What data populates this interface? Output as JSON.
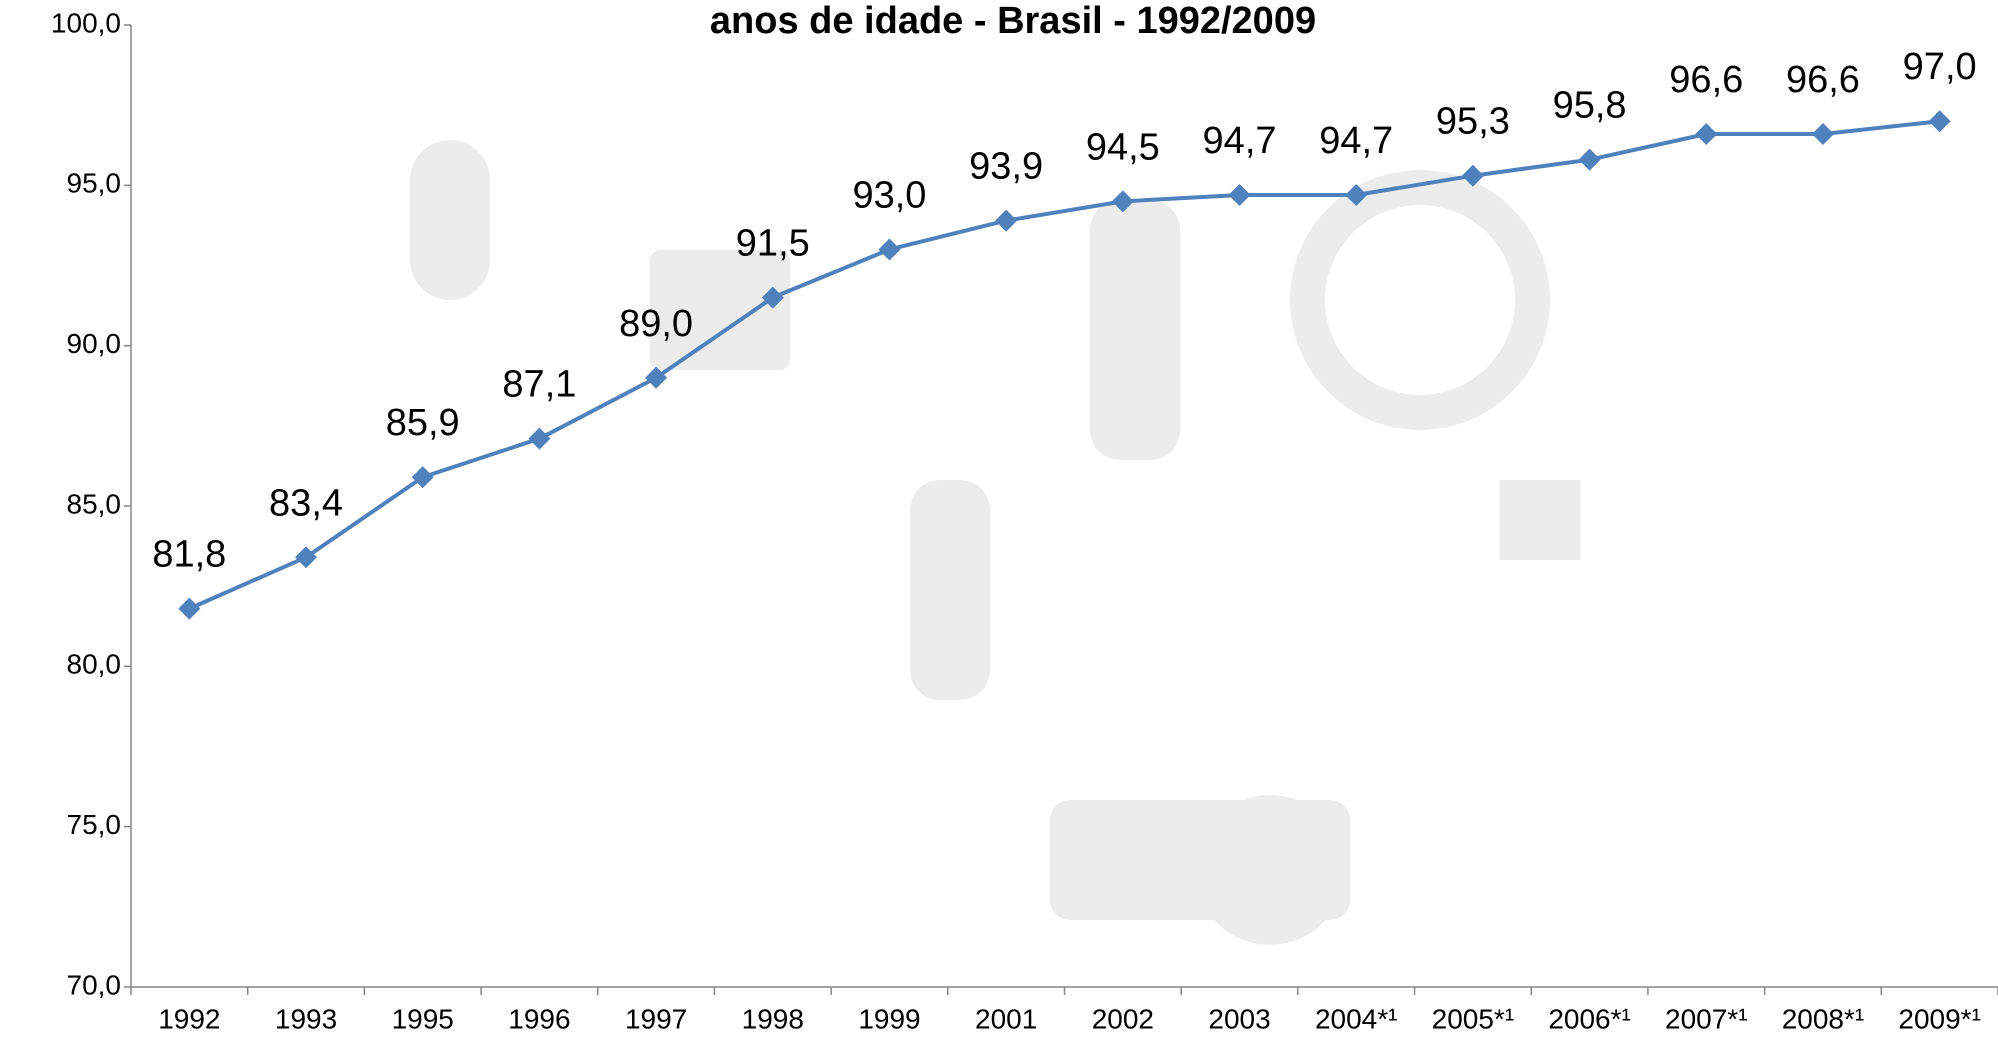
{
  "chart_data": {
    "type": "line",
    "title": "anos de idade - Brasil - 1992/2009",
    "categories": [
      "1992",
      "1993",
      "1995",
      "1996",
      "1997",
      "1998",
      "1999",
      "2001",
      "2002",
      "2003",
      "2004*¹",
      "2005*¹",
      "2006*¹",
      "2007*¹",
      "2008*¹",
      "2009*¹"
    ],
    "values": [
      81.8,
      83.4,
      85.9,
      87.1,
      89.0,
      91.5,
      93.0,
      93.9,
      94.5,
      94.7,
      94.7,
      95.3,
      95.8,
      96.6,
      96.6,
      97.0
    ],
    "value_labels": [
      "81,8",
      "83,4",
      "85,9",
      "87,1",
      "89,0",
      "91,5",
      "93,0",
      "93,9",
      "94,5",
      "94,7",
      "94,7",
      "95,3",
      "95,8",
      "96,6",
      "96,6",
      "97,0"
    ],
    "color": "#4f81bd",
    "ylim": [
      70,
      100
    ],
    "yticks": [
      {
        "value": 70,
        "label": "70,0"
      },
      {
        "value": 75,
        "label": "75,0"
      },
      {
        "value": 80,
        "label": "80,0"
      },
      {
        "value": 85,
        "label": "85,0"
      },
      {
        "value": 90,
        "label": "90,0"
      },
      {
        "value": 95,
        "label": "95,0"
      },
      {
        "value": 100,
        "label": "100,0"
      }
    ],
    "grid": false
  }
}
